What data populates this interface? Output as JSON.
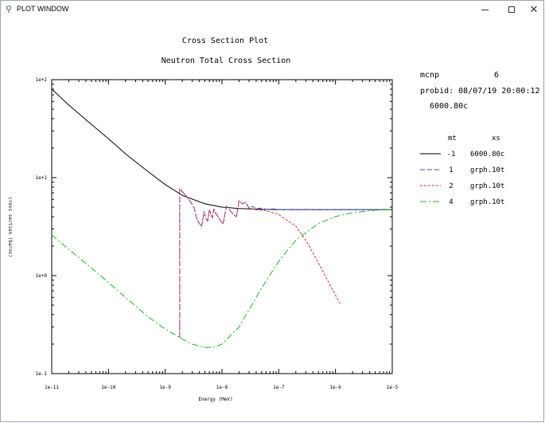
{
  "window": {
    "title": "PLOT WINDOW",
    "icon": "plot-window-icon",
    "controls": {
      "minimize": "minimize-icon",
      "maximize": "maximize-icon",
      "close": "close-icon"
    }
  },
  "plot": {
    "title_line1": "Cross Section Plot",
    "title_line2": "Neutron Total Cross Section"
  },
  "info": {
    "code_label": "mcnp",
    "code_version": "6",
    "probid": "probid: 08/07/19 20:00:12",
    "material": "6000.80c"
  },
  "legend": {
    "header_mt": "mt",
    "header_xs": "xs",
    "entries": [
      {
        "mt": "-1",
        "xs": "6000.80c",
        "color": "#000000",
        "dash": ""
      },
      {
        "mt": "1",
        "xs": "grph.10t",
        "color": "#4a4ad6",
        "dash": "6,3"
      },
      {
        "mt": "2",
        "xs": "grph.10t",
        "color": "#d62a2a",
        "dash": "3,2"
      },
      {
        "mt": "4",
        "xs": "grph.10t",
        "color": "#22b322",
        "dash": "8,3,2,3"
      }
    ]
  },
  "chart_data": {
    "type": "line",
    "title": "Cross Section Plot",
    "subtitle": "Neutron Total Cross Section",
    "xlabel": "Energy (MeV)",
    "ylabel": "cross section (barns)",
    "xscale": "log",
    "yscale": "log",
    "xlim": [
      1e-11,
      1e-05
    ],
    "ylim": [
      0.1,
      100
    ],
    "x_ticks": [
      "1e-11",
      "1e-10",
      "1e-9",
      "1e-8",
      "1e-7",
      "1e-6",
      "1e-5"
    ],
    "y_ticks": [
      "1e-1",
      "1e+0",
      "1e+1",
      "1e+2"
    ],
    "legend_placement": "right",
    "grid": false,
    "series": [
      {
        "name": "-1 6000.80c",
        "x": [
          1e-11,
          2e-11,
          5e-11,
          1e-10,
          2e-10,
          5e-10,
          1e-09,
          2e-09,
          5e-09,
          1e-08,
          2e-08,
          5e-08,
          1e-07,
          1e-06,
          1e-05
        ],
        "y": [
          80,
          55,
          35,
          25,
          17.5,
          11.5,
          8.5,
          6.6,
          5.4,
          5.0,
          4.85,
          4.75,
          4.72,
          4.72,
          4.72
        ]
      },
      {
        "name": "1 grph.10t",
        "x": [
          1.8e-09,
          1.8e-09,
          2.5e-09,
          3.2e-09,
          3.6e-09,
          4e-09,
          4.4e-09,
          4.8e-09,
          5.2e-09,
          5.6e-09,
          6e-09,
          6.4e-09,
          6.8e-09,
          7.2e-09,
          7.6e-09,
          8.5e-09,
          9.5e-09,
          1.05e-08,
          1.2e-08,
          1.4e-08,
          1.6e-08,
          1.8e-08,
          2e-08,
          2.3e-08,
          2.6e-08,
          3e-08,
          3.5e-08,
          4e-08,
          5e-08,
          6e-08,
          8e-08,
          1e-07,
          1e-06,
          1e-05
        ],
        "y": [
          0.23,
          7.7,
          6.2,
          5.0,
          3.8,
          3.4,
          3.2,
          4.5,
          3.9,
          3.6,
          4.7,
          4.2,
          3.9,
          4.8,
          4.4,
          4.0,
          3.6,
          3.4,
          5.1,
          4.6,
          4.2,
          4.0,
          5.8,
          5.4,
          5.6,
          4.9,
          5.1,
          4.8,
          4.9,
          4.75,
          4.8,
          4.72,
          4.72,
          4.72
        ]
      },
      {
        "name": "2 grph.10t",
        "x": [
          1.8e-09,
          1.8e-09,
          2.5e-09,
          3.2e-09,
          3.6e-09,
          4e-09,
          4.4e-09,
          4.8e-09,
          5.2e-09,
          5.6e-09,
          6e-09,
          6.4e-09,
          6.8e-09,
          7.2e-09,
          7.6e-09,
          8.5e-09,
          9.5e-09,
          1.05e-08,
          1.2e-08,
          1.4e-08,
          1.6e-08,
          1.8e-08,
          2e-08,
          2.3e-08,
          2.6e-08,
          3e-08,
          4e-08,
          6e-08,
          1e-07,
          2e-07,
          3e-07,
          5e-07,
          8e-07,
          1.2e-06
        ],
        "y": [
          0.23,
          7.7,
          6.2,
          5.0,
          3.8,
          3.4,
          3.2,
          4.5,
          3.9,
          3.6,
          4.7,
          4.2,
          3.9,
          4.8,
          4.4,
          4.0,
          3.6,
          3.4,
          5.1,
          4.6,
          4.2,
          4.0,
          5.8,
          5.4,
          5.6,
          4.9,
          4.7,
          4.6,
          4.2,
          3.2,
          2.3,
          1.35,
          0.8,
          0.52
        ]
      },
      {
        "name": "4 grph.10t",
        "x": [
          1e-11,
          2e-11,
          5e-11,
          1e-10,
          2e-10,
          5e-10,
          1e-09,
          2e-09,
          3e-09,
          5e-09,
          7e-09,
          1e-08,
          2e-08,
          5e-08,
          1e-07,
          2e-07,
          5e-07,
          1e-06,
          2e-06,
          5e-06,
          1e-05
        ],
        "y": [
          2.6,
          1.85,
          1.2,
          0.85,
          0.6,
          0.38,
          0.285,
          0.225,
          0.2,
          0.185,
          0.185,
          0.2,
          0.3,
          0.75,
          1.4,
          2.3,
          3.4,
          4.0,
          4.4,
          4.65,
          4.72
        ]
      }
    ]
  }
}
